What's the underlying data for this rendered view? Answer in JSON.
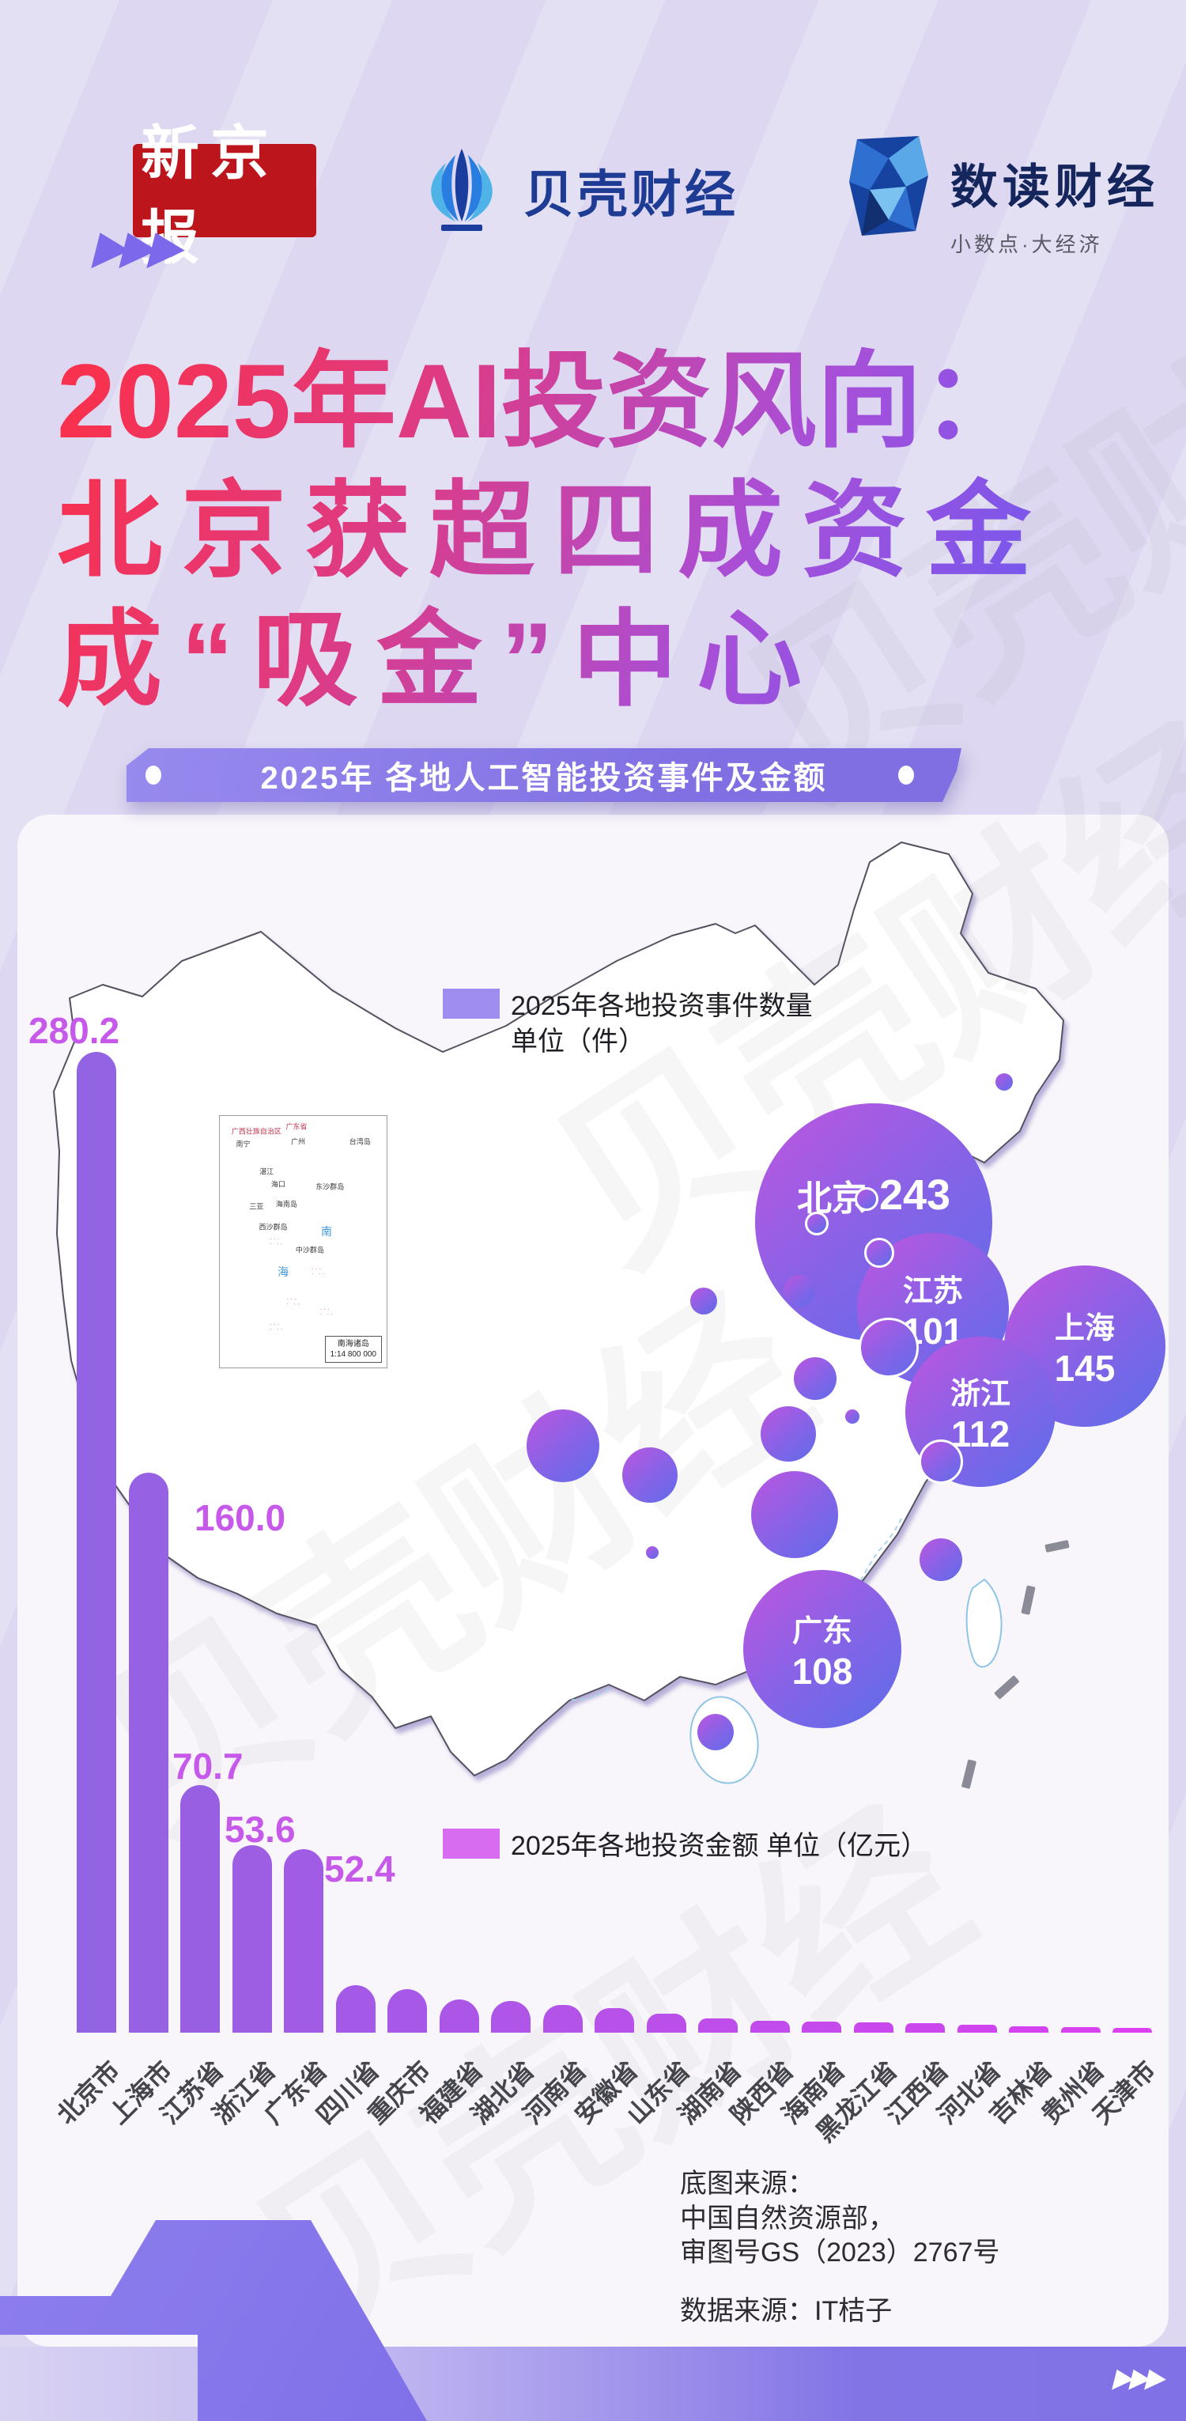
{
  "header": {
    "logo_xinjingbao": "新京报",
    "logo_beike": "贝壳财经",
    "logo_shudu": "数读财经",
    "logo_shudu_sub": "小数点·大经济"
  },
  "title": {
    "lines": [
      "2025年AI投资风向：",
      "北京获超四成资金",
      "成“吸金”中心"
    ]
  },
  "banner": {
    "text": "2025年 各地人工智能投资事件及金额"
  },
  "map_section": {
    "legend_events": {
      "line1": "2025年各地投资事件数量",
      "line2": "单位（件）"
    },
    "legend_amount": {
      "text": "2025年各地投资金额 单位（亿元）"
    },
    "bubbles": [
      {
        "name": "北京",
        "value": 243
      },
      {
        "name": "江苏",
        "value": 101
      },
      {
        "name": "上海",
        "value": 145
      },
      {
        "name": "浙江",
        "value": 112
      },
      {
        "name": "广东",
        "value": 108
      }
    ],
    "inset": {
      "name": "南海诸岛",
      "scale": "1:14 800 000",
      "labels": [
        {
          "t": "广西壮族自治区",
          "c": "red"
        },
        {
          "t": "广东省",
          "c": "red"
        },
        {
          "t": "南宁",
          "c": "blk"
        },
        {
          "t": "广州",
          "c": "blk"
        },
        {
          "t": "湛江",
          "c": "blk"
        },
        {
          "t": "海口",
          "c": "blk"
        },
        {
          "t": "海南岛",
          "c": "blk"
        },
        {
          "t": "三亚",
          "c": "blk"
        },
        {
          "t": "东沙群岛",
          "c": "blk"
        },
        {
          "t": "西沙群岛",
          "c": "blk"
        },
        {
          "t": "中沙群岛",
          "c": "blk"
        },
        {
          "t": "台湾岛",
          "c": "blk"
        },
        {
          "t": "南",
          "c": "blue"
        },
        {
          "t": "海",
          "c": "blue"
        }
      ]
    }
  },
  "chart_data": [
    {
      "type": "scatter",
      "subtype": "bubble-map",
      "title": "2025年各地投资事件数量 单位（件）",
      "points": [
        {
          "name": "北京",
          "value": 243
        },
        {
          "name": "上海",
          "value": 145
        },
        {
          "name": "浙江",
          "value": 112
        },
        {
          "name": "广东",
          "value": 108
        },
        {
          "name": "江苏",
          "value": 101
        }
      ]
    },
    {
      "type": "bar",
      "title": "2025年各地投资金额 单位（亿元）",
      "categories": [
        "北京市",
        "上海市",
        "江苏省",
        "浙江省",
        "广东省",
        "四川省",
        "重庆市",
        "福建省",
        "湖北省",
        "河南省",
        "安徽省",
        "山东省",
        "湖南省",
        "陕西省",
        "海南省",
        "黑龙江省",
        "江西省",
        "河北省",
        "吉林省",
        "贵州省",
        "天津市"
      ],
      "values": [
        280.2,
        160.0,
        70.7,
        53.6,
        52.4,
        13.5,
        12.5,
        9.5,
        9.0,
        8.0,
        7.0,
        5.5,
        4.0,
        3.5,
        3.2,
        2.9,
        2.6,
        2.2,
        1.8,
        1.5,
        1.2
      ],
      "labeled_count": 5,
      "ylim": [
        0,
        300
      ]
    }
  ],
  "source": {
    "lines": [
      "底图来源：",
      "中国自然资源部，",
      "审图号GS（2023）2767号"
    ],
    "data_source": "数据来源：IT桔子"
  },
  "watermark": "贝壳财经",
  "colors": {
    "background": "#ddd7f1",
    "card": "#f8f6fa",
    "banner": "#8273e2",
    "title_gradient_start": "#f8314e",
    "title_gradient_end": "#7059f0",
    "bar_start": "#9263e2",
    "bar_end": "#db3ff0",
    "value_label": "#c659ea",
    "bubble_start": "#c055e0",
    "bubble_end": "#5b6eea",
    "legend_events_square": "#a08df0",
    "legend_amount_square": "#d76cf0",
    "xinjingbao_red": "#bc151b",
    "logo_navy": "#1e3c94"
  }
}
